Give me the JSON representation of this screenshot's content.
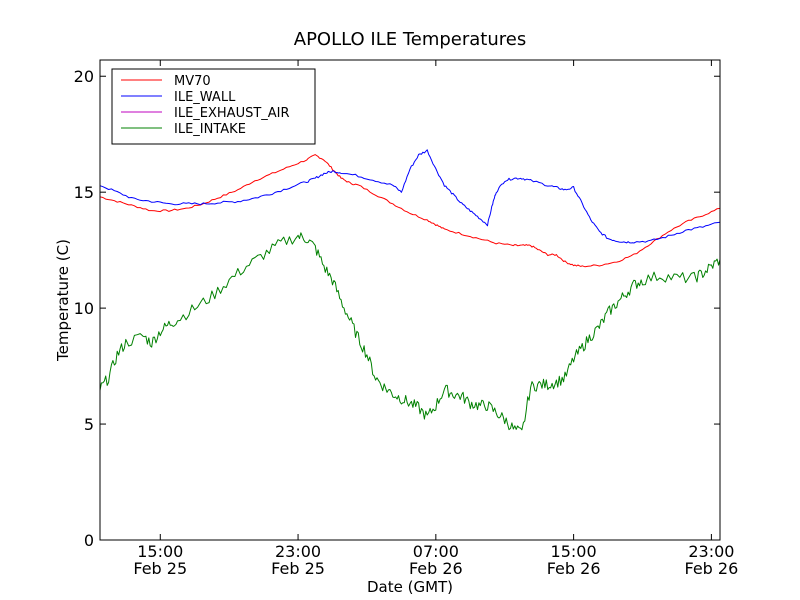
{
  "chart_data": {
    "type": "line",
    "title": "APOLLO ILE Temperatures",
    "xlabel": "Date (GMT)",
    "ylabel": "Temperature (C)",
    "x_unit": "hours",
    "xlim": [
      11.5,
      47.5
    ],
    "ylim": [
      0,
      20.7
    ],
    "yticks": [
      0,
      5,
      10,
      15,
      20
    ],
    "xticks": [
      {
        "x": 15,
        "line1": "15:00",
        "line2": "Feb 25"
      },
      {
        "x": 23,
        "line1": "23:00",
        "line2": "Feb 25"
      },
      {
        "x": 31,
        "line1": "07:00",
        "line2": "Feb 26"
      },
      {
        "x": 39,
        "line1": "15:00",
        "line2": "Feb 26"
      },
      {
        "x": 47,
        "line1": "23:00",
        "line2": "Feb 26"
      }
    ],
    "legend_position": "upper-left",
    "grid": false,
    "series": [
      {
        "name": "MV70",
        "color": "#ff0000",
        "noise": 0.04,
        "x": [
          11.5,
          12.5,
          13.5,
          14.5,
          15.5,
          16.5,
          17.5,
          18.5,
          19.5,
          20.5,
          21.5,
          22.5,
          23.5,
          24.0,
          24.5,
          25.0,
          25.5,
          26.0,
          26.5,
          27.5,
          28.5,
          29.5,
          30.5,
          31.0,
          31.5,
          32.5,
          33.5,
          34.5,
          35.5,
          36.0,
          36.5,
          37.0,
          37.5,
          38.0,
          38.5,
          39.0,
          39.5,
          40.5,
          41.5,
          42.5,
          43.5,
          44.5,
          45.5,
          46.5,
          47.5
        ],
        "y": [
          14.8,
          14.6,
          14.4,
          14.2,
          14.2,
          14.3,
          14.5,
          14.8,
          15.1,
          15.5,
          15.8,
          16.1,
          16.4,
          16.6,
          16.4,
          16.0,
          15.6,
          15.4,
          15.3,
          14.9,
          14.5,
          14.1,
          13.8,
          13.6,
          13.4,
          13.2,
          13.0,
          12.8,
          12.7,
          12.7,
          12.7,
          12.5,
          12.3,
          12.3,
          12.0,
          11.85,
          11.8,
          11.85,
          12.0,
          12.3,
          12.8,
          13.3,
          13.7,
          14.0,
          14.3
        ]
      },
      {
        "name": "ILE_WALL",
        "color": "#0000ff",
        "noise": 0.05,
        "x": [
          11.5,
          12.5,
          13.5,
          14.5,
          15.5,
          16.5,
          17.5,
          18.5,
          19.5,
          20.5,
          21.5,
          22.5,
          23.5,
          24.0,
          24.5,
          25.0,
          25.5,
          26.5,
          27.5,
          28.5,
          29.0,
          29.5,
          30.0,
          30.5,
          31.0,
          31.5,
          32.0,
          32.5,
          33.0,
          33.5,
          34.0,
          34.3,
          34.5,
          35.0,
          35.5,
          36.0,
          36.5,
          37.5,
          38.0,
          38.5,
          39.0,
          39.5,
          40.0,
          40.5,
          41.0,
          41.5,
          42.0,
          42.5,
          43.5,
          44.5,
          45.5,
          46.5,
          47.5
        ],
        "y": [
          15.3,
          15.0,
          14.7,
          14.6,
          14.5,
          14.5,
          14.5,
          14.55,
          14.6,
          14.75,
          14.95,
          15.2,
          15.45,
          15.6,
          15.8,
          15.9,
          15.85,
          15.7,
          15.5,
          15.3,
          15.0,
          16.0,
          16.6,
          16.8,
          16.0,
          15.3,
          14.9,
          14.5,
          14.2,
          13.9,
          13.6,
          14.5,
          15.0,
          15.5,
          15.6,
          15.6,
          15.5,
          15.3,
          15.2,
          15.1,
          15.2,
          14.5,
          13.8,
          13.3,
          13.0,
          12.9,
          12.85,
          12.85,
          12.9,
          13.1,
          13.35,
          13.5,
          13.7
        ]
      },
      {
        "name": "ILE_EXHAUST_AIR",
        "color": "#bf00bf",
        "noise": 0,
        "x": [],
        "y": []
      },
      {
        "name": "ILE_INTAKE",
        "color": "#008000",
        "noise": 0.25,
        "x": [
          11.5,
          12.0,
          12.5,
          13.0,
          14.0,
          14.5,
          15.0,
          15.5,
          16.0,
          17.0,
          18.0,
          19.0,
          20.0,
          21.0,
          22.0,
          23.0,
          23.5,
          24.0,
          24.5,
          25.0,
          25.5,
          26.0,
          26.5,
          27.0,
          27.5,
          28.0,
          28.5,
          29.0,
          29.5,
          30.0,
          30.5,
          31.0,
          31.5,
          32.0,
          32.5,
          33.0,
          33.5,
          34.0,
          34.5,
          35.0,
          35.5,
          36.0,
          36.5,
          37.0,
          37.5,
          38.0,
          38.5,
          39.0,
          39.5,
          40.0,
          40.5,
          41.0,
          41.5,
          42.0,
          42.5,
          43.0,
          44.0,
          45.0,
          46.0,
          46.5,
          47.0,
          47.5
        ],
        "y": [
          6.5,
          7.0,
          8.0,
          8.5,
          8.8,
          8.5,
          9.0,
          9.3,
          9.5,
          10.0,
          10.5,
          11.2,
          11.8,
          12.3,
          12.8,
          13.1,
          13.0,
          12.6,
          11.8,
          11.2,
          10.3,
          9.5,
          8.7,
          8.0,
          7.0,
          6.6,
          6.3,
          6.1,
          5.9,
          5.7,
          5.3,
          5.8,
          6.5,
          6.3,
          6.2,
          5.9,
          5.8,
          5.8,
          5.5,
          5.2,
          4.8,
          4.6,
          6.6,
          6.7,
          6.7,
          6.8,
          7.0,
          7.8,
          8.3,
          8.8,
          9.2,
          9.8,
          10.2,
          10.6,
          11.0,
          11.2,
          11.4,
          11.3,
          11.3,
          11.5,
          11.8,
          12.1
        ]
      }
    ]
  }
}
